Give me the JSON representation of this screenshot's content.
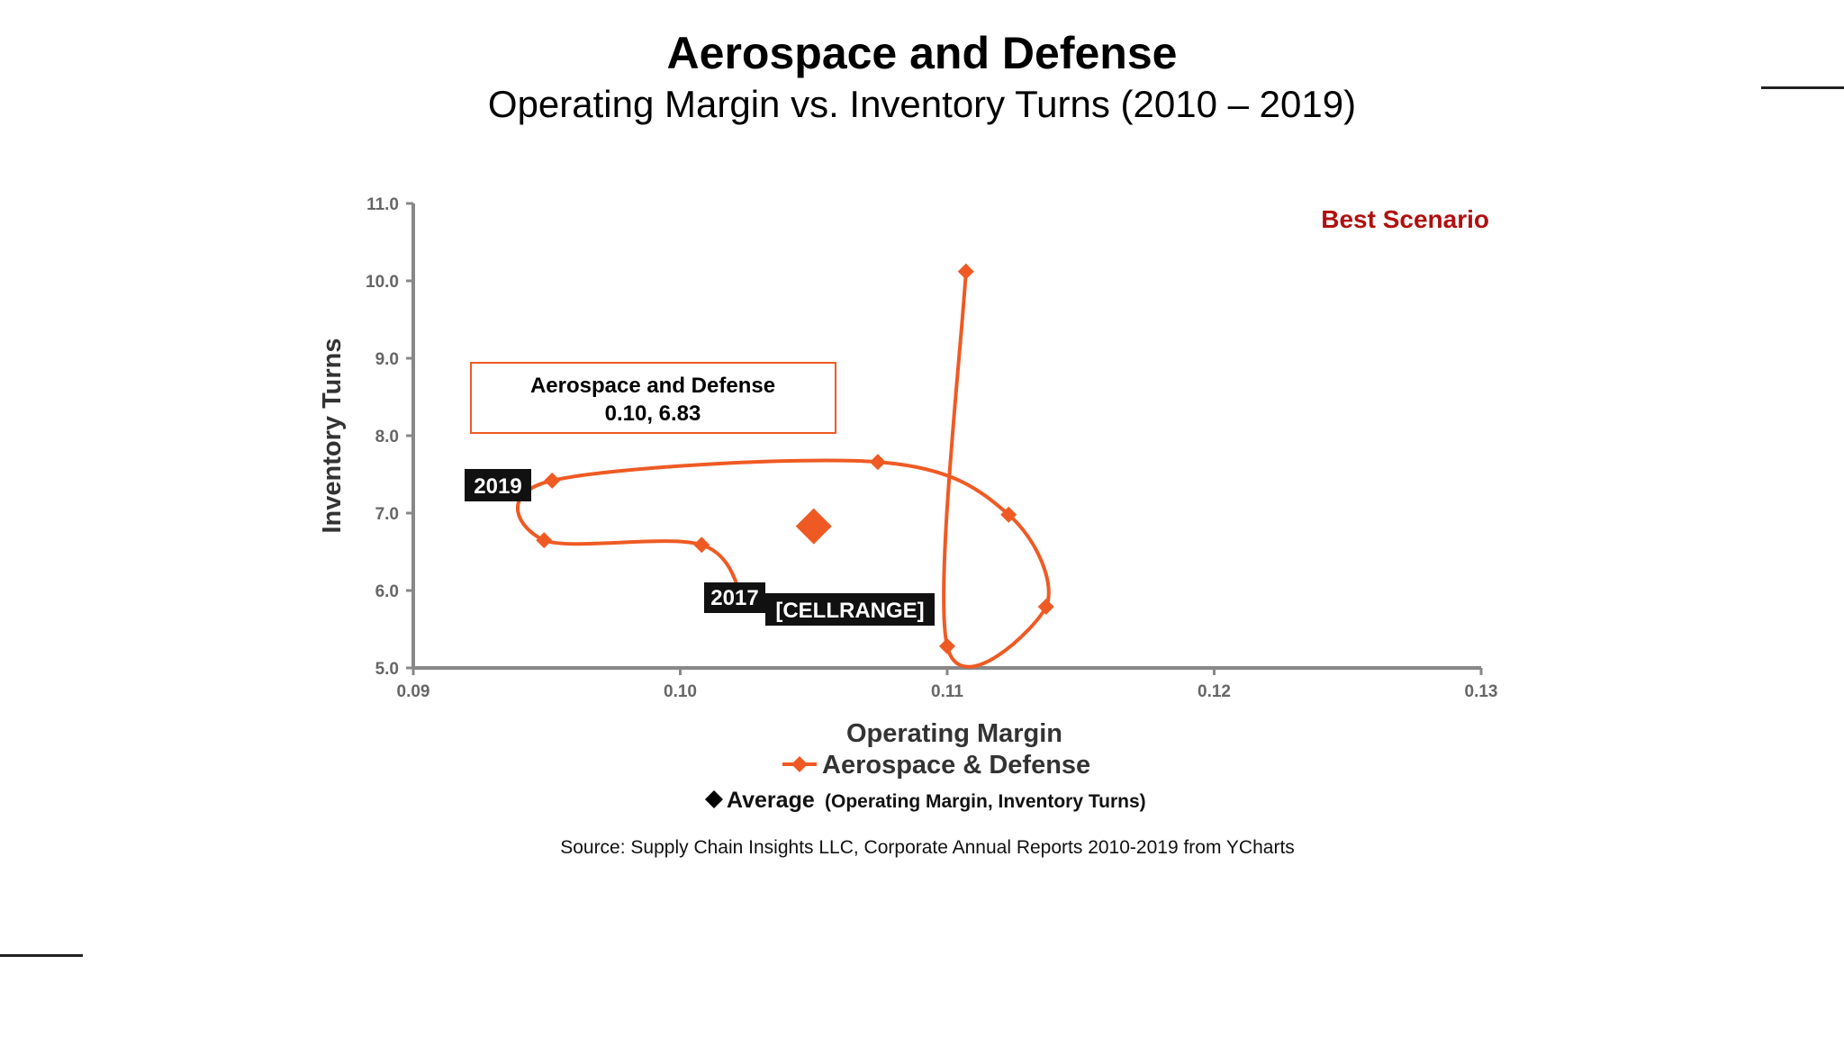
{
  "title": "Aerospace and Defense",
  "subtitle": "Operating Margin vs. Inventory Turns (2010 – 2019)",
  "source": "Source:  Supply Chain Insights LLC, Corporate Annual Reports 2010-2019 from YCharts",
  "colors": {
    "series": "#ef5a24",
    "best": "#b01010",
    "axis": "#888888",
    "tag_bg": "#111111"
  },
  "chart_data": {
    "type": "scatter",
    "xlabel": "Operating Margin",
    "ylabel": "Inventory Turns",
    "xlim": [
      0.09,
      0.13
    ],
    "ylim": [
      5.0,
      11.0
    ],
    "x_ticks": [
      "0.09",
      "0.10",
      "0.11",
      "0.12",
      "0.13"
    ],
    "y_ticks": [
      "5.0",
      "6.0",
      "7.0",
      "8.0",
      "9.0",
      "10.0",
      "11.0"
    ],
    "series": [
      {
        "name": "Aerospace & Defense",
        "connected": "smooth-line",
        "points": [
          {
            "x": 0.1107,
            "y": 10.12
          },
          {
            "x": 0.11,
            "y": 5.28
          },
          {
            "x": 0.1137,
            "y": 5.79
          },
          {
            "x": 0.1123,
            "y": 6.98
          },
          {
            "x": 0.1074,
            "y": 7.66
          },
          {
            "x": 0.0952,
            "y": 7.42
          },
          {
            "x": 0.0949,
            "y": 6.65
          },
          {
            "x": 0.1008,
            "y": 6.59
          },
          {
            "x": 0.1024,
            "y": 5.83
          }
        ]
      }
    ],
    "average": {
      "name": "Average",
      "x": 0.105,
      "y": 6.83
    },
    "legend": {
      "series_label": "Aerospace & Defense",
      "average_label": "Average",
      "average_note": "(Operating Margin, Inventory Turns)"
    },
    "annotations": {
      "best_scenario": "Best Scenario",
      "callout_title": "Aerospace and Defense",
      "callout_value": "0.10, 6.83",
      "tag_2019": "2019",
      "tag_2017": "2017",
      "tag_cellrange": "[CELLRANGE]"
    }
  }
}
